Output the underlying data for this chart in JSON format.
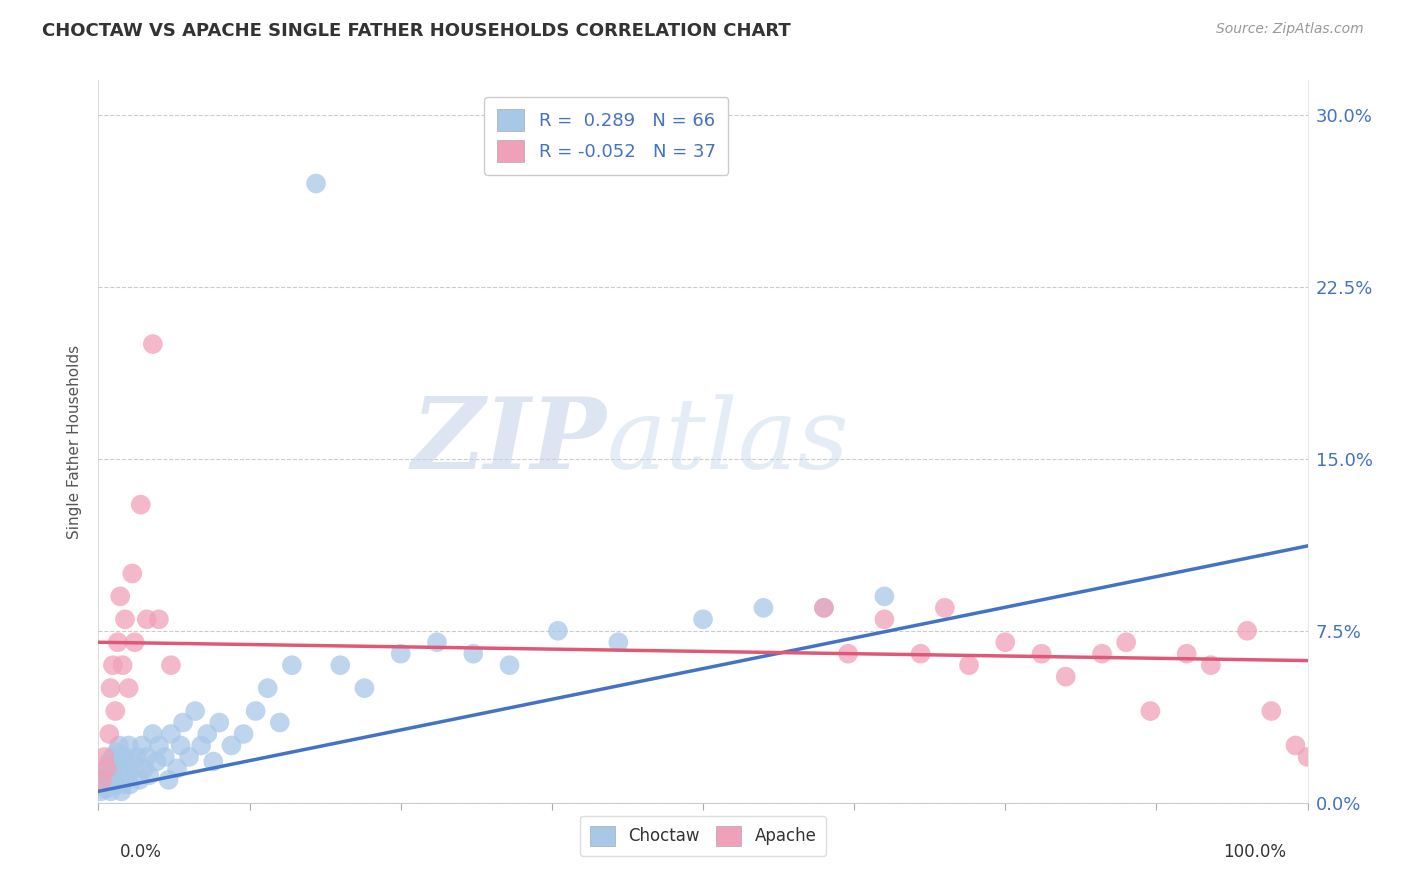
{
  "title": "CHOCTAW VS APACHE SINGLE FATHER HOUSEHOLDS CORRELATION CHART",
  "source": "Source: ZipAtlas.com",
  "ylabel": "Single Father Households",
  "ytick_labels": [
    "0.0%",
    "7.5%",
    "15.0%",
    "22.5%",
    "30.0%"
  ],
  "ytick_values": [
    0.0,
    0.075,
    0.15,
    0.225,
    0.3
  ],
  "xlim": [
    0.0,
    1.0
  ],
  "ylim": [
    0.0,
    0.315
  ],
  "choctaw_R": 0.289,
  "choctaw_N": 66,
  "apache_R": -0.052,
  "apache_N": 37,
  "choctaw_color": "#a8c8e8",
  "apache_color": "#f0a0b8",
  "choctaw_line_color": "#4472c4",
  "apache_line_color": "#e05878",
  "background_color": "#ffffff",
  "watermark_zip": "ZIP",
  "watermark_atlas": "atlas",
  "choctaw_line_x": [
    0.0,
    1.0
  ],
  "choctaw_line_y": [
    0.005,
    0.112
  ],
  "apache_line_x": [
    0.0,
    1.0
  ],
  "apache_line_y": [
    0.07,
    0.062
  ],
  "choctaw_x": [
    0.002,
    0.003,
    0.004,
    0.005,
    0.006,
    0.007,
    0.008,
    0.009,
    0.01,
    0.011,
    0.012,
    0.013,
    0.014,
    0.015,
    0.016,
    0.017,
    0.018,
    0.019,
    0.02,
    0.021,
    0.022,
    0.023,
    0.025,
    0.026,
    0.028,
    0.03,
    0.032,
    0.034,
    0.036,
    0.038,
    0.04,
    0.042,
    0.045,
    0.048,
    0.05,
    0.055,
    0.058,
    0.06,
    0.065,
    0.068,
    0.07,
    0.075,
    0.08,
    0.085,
    0.09,
    0.095,
    0.1,
    0.11,
    0.12,
    0.13,
    0.14,
    0.15,
    0.16,
    0.18,
    0.2,
    0.22,
    0.25,
    0.28,
    0.31,
    0.34,
    0.38,
    0.43,
    0.5,
    0.55,
    0.6,
    0.65
  ],
  "choctaw_y": [
    0.005,
    0.008,
    0.01,
    0.012,
    0.006,
    0.015,
    0.01,
    0.018,
    0.005,
    0.012,
    0.02,
    0.015,
    0.008,
    0.022,
    0.01,
    0.025,
    0.018,
    0.005,
    0.008,
    0.015,
    0.02,
    0.012,
    0.025,
    0.008,
    0.018,
    0.015,
    0.02,
    0.01,
    0.025,
    0.015,
    0.02,
    0.012,
    0.03,
    0.018,
    0.025,
    0.02,
    0.01,
    0.03,
    0.015,
    0.025,
    0.035,
    0.02,
    0.04,
    0.025,
    0.03,
    0.018,
    0.035,
    0.025,
    0.03,
    0.04,
    0.05,
    0.035,
    0.06,
    0.27,
    0.06,
    0.05,
    0.065,
    0.07,
    0.065,
    0.06,
    0.075,
    0.07,
    0.08,
    0.085,
    0.085,
    0.09
  ],
  "apache_x": [
    0.003,
    0.005,
    0.007,
    0.009,
    0.01,
    0.012,
    0.014,
    0.016,
    0.018,
    0.02,
    0.022,
    0.025,
    0.028,
    0.03,
    0.035,
    0.04,
    0.045,
    0.05,
    0.06,
    0.6,
    0.62,
    0.65,
    0.68,
    0.7,
    0.72,
    0.75,
    0.78,
    0.8,
    0.83,
    0.85,
    0.87,
    0.9,
    0.92,
    0.95,
    0.97,
    0.99,
    1.0
  ],
  "apache_y": [
    0.01,
    0.02,
    0.015,
    0.03,
    0.05,
    0.06,
    0.04,
    0.07,
    0.09,
    0.06,
    0.08,
    0.05,
    0.1,
    0.07,
    0.13,
    0.08,
    0.2,
    0.08,
    0.06,
    0.085,
    0.065,
    0.08,
    0.065,
    0.085,
    0.06,
    0.07,
    0.065,
    0.055,
    0.065,
    0.07,
    0.04,
    0.065,
    0.06,
    0.075,
    0.04,
    0.025,
    0.02
  ]
}
